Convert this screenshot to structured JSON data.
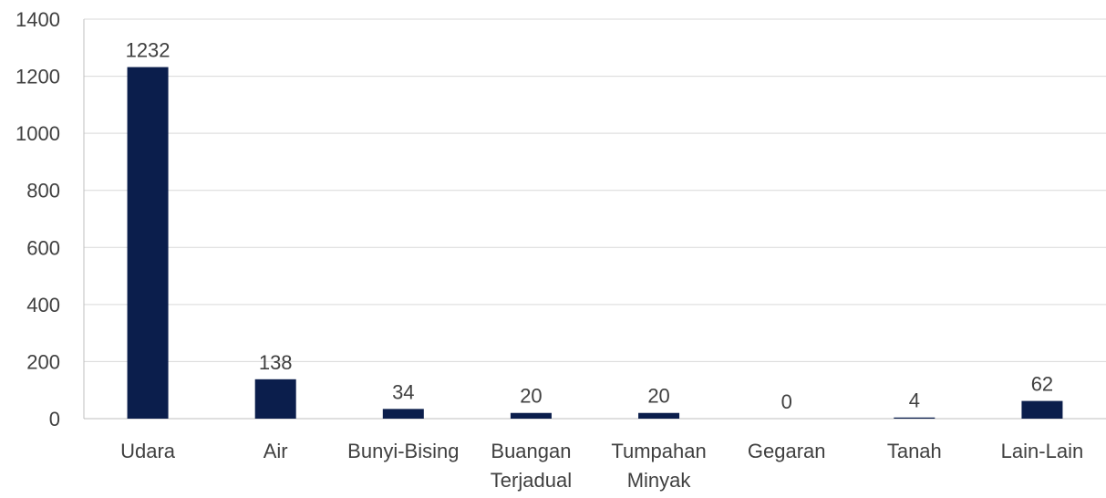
{
  "chart_data": {
    "type": "bar",
    "categories": [
      [
        "Udara"
      ],
      [
        "Air"
      ],
      [
        "Bunyi-Bising"
      ],
      [
        "Buangan",
        "Terjadual"
      ],
      [
        "Tumpahan",
        "Minyak"
      ],
      [
        "Gegaran"
      ],
      [
        "Tanah"
      ],
      [
        "Lain-Lain"
      ]
    ],
    "values": [
      1232,
      138,
      34,
      20,
      20,
      0,
      4,
      62
    ],
    "data_labels": [
      "1232",
      "138",
      "34",
      "20",
      "20",
      "0",
      "4",
      "62"
    ],
    "ylim": [
      0,
      1400
    ],
    "yticks": [
      0,
      200,
      400,
      600,
      800,
      1000,
      1200,
      1400
    ],
    "ytick_labels": [
      "0",
      "200",
      "400",
      "600",
      "800",
      "1000",
      "1200",
      "1400"
    ],
    "grid": true,
    "legend": "none",
    "title": "",
    "xlabel": "",
    "ylabel": "",
    "colors": {
      "bar": "#0b1e4c",
      "grid": "#d9d9d9",
      "axis": "#bfbfbf",
      "text": "#404040"
    }
  }
}
